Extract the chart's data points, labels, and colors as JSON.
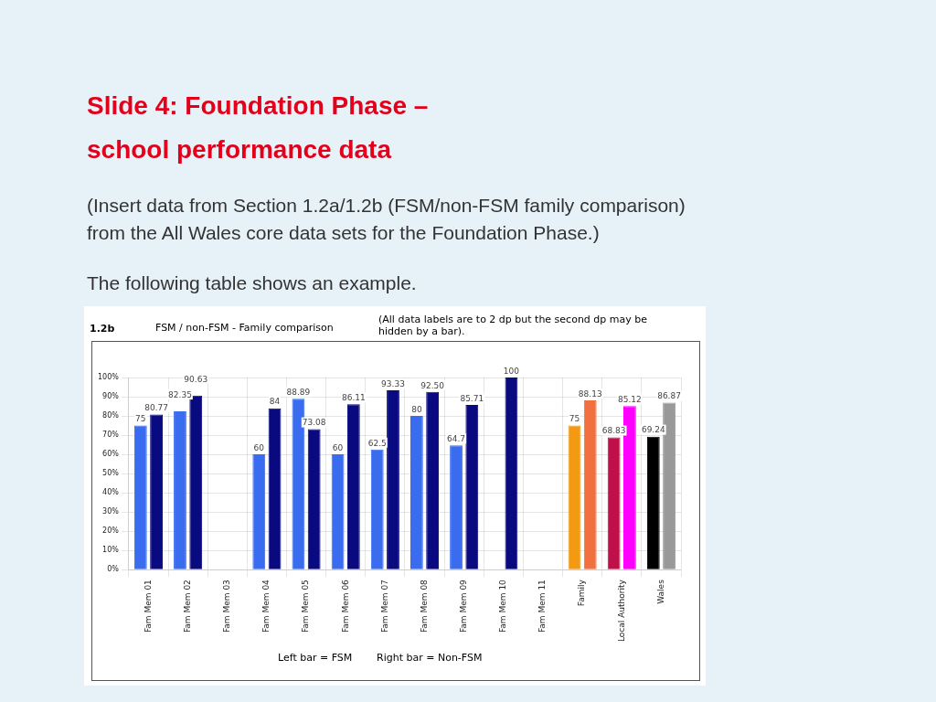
{
  "chart_data": {
    "type": "bar",
    "title": "Slide 4:  Foundation Phase –\nschool performance data",
    "subtitle": "(Insert data from Section 1.2a/1.2b (FSM/non-FSM family comparison)\nfrom the All Wales core data sets for the Foundation Phase.)",
    "annotations": [
      "The following table shows an example.",
      "1.2b",
      "FSM / non-FSM - Family comparison",
      "(All data labels are to 2 dp but the second dp may be\nhidden by a bar).",
      "Left bar = FSM",
      "Right bar = Non-FSM"
    ],
    "categories": [
      "Fam Mem 01",
      "Fam Mem 02",
      "Fam Mem 03",
      "Fam Mem 04",
      "Fam Mem 05",
      "Fam Mem 06",
      "Fam Mem 07",
      "Fam Mem 08",
      "Fam Mem 09",
      "Fam Mem 10",
      "Fam Mem 11",
      "Family",
      "Local Authority",
      "Wales"
    ],
    "series": [
      {
        "colors": [
          "#3a6cf0",
          "#3a6cf0",
          "#3a6cf0",
          "#3a6cf0",
          "#3a6cf0",
          "#3a6cf0",
          "#3a6cf0",
          "#3a6cf0",
          "#3a6cf0",
          "#3a6cf0",
          "#3a6cf0",
          "#f39a12",
          "#c0104a",
          "#000000"
        ],
        "values": [
          75,
          82.35,
          null,
          60,
          88.89,
          60,
          62.5,
          80,
          64.7,
          null,
          null,
          75,
          68.83,
          69.24
        ],
        "value_labels": [
          "75",
          "82.35",
          null,
          "60",
          "88.89",
          "60",
          "62.5",
          "80",
          "64.7",
          null,
          null,
          "75",
          "68.83",
          "69.24"
        ]
      },
      {
        "colors": [
          "#0a0a80",
          "#0a0a80",
          "#0a0a80",
          "#0a0a80",
          "#0a0a80",
          "#0a0a80",
          "#0a0a80",
          "#0a0a80",
          "#0a0a80",
          "#0a0a80",
          "#0a0a80",
          "#f07040",
          "#ff00ff",
          "#999999"
        ],
        "values": [
          80.77,
          90.63,
          null,
          84,
          73.08,
          86.11,
          93.33,
          92.5,
          85.71,
          100,
          null,
          88.13,
          85.12,
          86.87
        ],
        "value_labels": [
          "80.77",
          "90.63",
          null,
          "84",
          "73.08",
          "86.11",
          "93.33",
          "92.50",
          "85.71",
          "100",
          null,
          "88.13",
          "85.12",
          "86.87"
        ]
      }
    ],
    "ylim": [
      0,
      100
    ],
    "yticks": [
      {
        "value": 0,
        "label": "0%"
      },
      {
        "value": 10,
        "label": "10%"
      },
      {
        "value": 20,
        "label": "20%"
      },
      {
        "value": 30,
        "label": "30%"
      },
      {
        "value": 40,
        "label": "40%"
      },
      {
        "value": 50,
        "label": "50%"
      },
      {
        "value": 60,
        "label": "60%"
      },
      {
        "value": 70,
        "label": "70%"
      },
      {
        "value": 80,
        "label": "80%"
      },
      {
        "value": 90,
        "label": "90%"
      },
      {
        "value": 100,
        "label": "100%"
      }
    ],
    "grid": true,
    "legend": false
  }
}
